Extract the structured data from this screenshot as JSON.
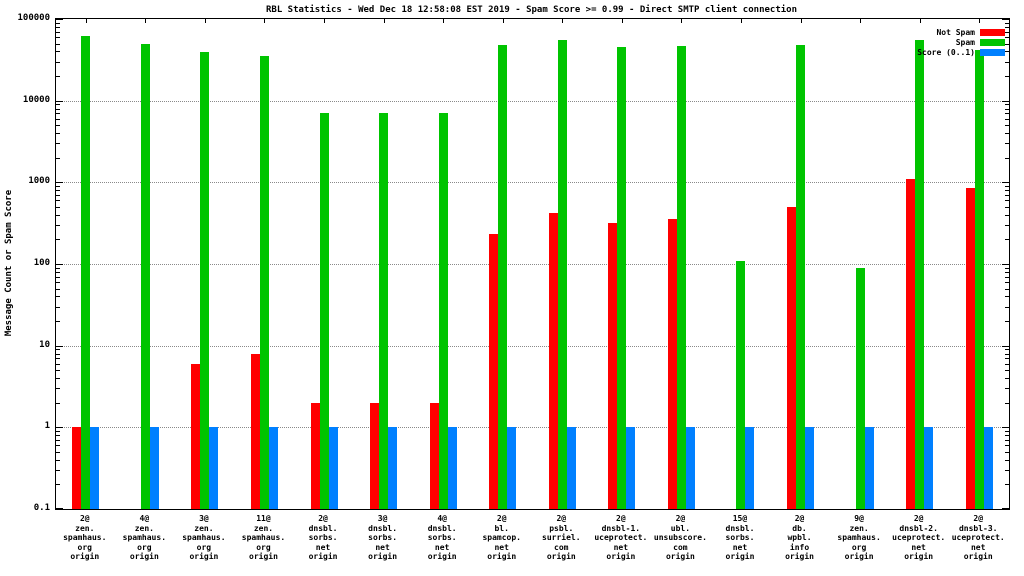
{
  "chart_data": {
    "type": "bar",
    "title": "RBL Statistics - Wed Dec 18 12:58:08 EST 2019 - Spam Score >= 0.99 - Direct SMTP client connection",
    "ylabel": "Message Count or Spam Score",
    "xlabel": "",
    "yscale": "log",
    "ylim": [
      0.1,
      100000
    ],
    "yticks": [
      0.1,
      1,
      10,
      100,
      1000,
      10000,
      100000
    ],
    "grid": "horizontal-dotted",
    "legend_position": "top-right",
    "background": "#ffffff",
    "categories": [
      [
        "2@",
        "zen.",
        "spamhaus.",
        "org",
        "origin"
      ],
      [
        "4@",
        "zen.",
        "spamhaus.",
        "org",
        "origin"
      ],
      [
        "3@",
        "zen.",
        "spamhaus.",
        "org",
        "origin"
      ],
      [
        "11@",
        "zen.",
        "spamhaus.",
        "org",
        "origin"
      ],
      [
        "2@",
        "dnsbl.",
        "sorbs.",
        "net",
        "origin"
      ],
      [
        "3@",
        "dnsbl.",
        "sorbs.",
        "net",
        "origin"
      ],
      [
        "4@",
        "dnsbl.",
        "sorbs.",
        "net",
        "origin"
      ],
      [
        "2@",
        "bl.",
        "spamcop.",
        "net",
        "origin"
      ],
      [
        "2@",
        "psbl.",
        "surriel.",
        "com",
        "origin"
      ],
      [
        "2@",
        "dnsbl-1.",
        "uceprotect.",
        "net",
        "origin"
      ],
      [
        "2@",
        "ubl.",
        "unsubscore.",
        "com",
        "origin"
      ],
      [
        "15@",
        "dnsbl.",
        "sorbs.",
        "net",
        "origin"
      ],
      [
        "2@",
        "db.",
        "wpbl.",
        "info",
        "origin"
      ],
      [
        "9@",
        "zen.",
        "spamhaus.",
        "org",
        "origin"
      ],
      [
        "2@",
        "dnsbl-2.",
        "uceprotect.",
        "net",
        "origin"
      ],
      [
        "2@",
        "dnsbl-3.",
        "uceprotect.",
        "net",
        "origin"
      ]
    ],
    "series": [
      {
        "name": "Not Spam",
        "color": "#ff0000",
        "values": [
          1,
          null,
          6,
          8,
          2,
          2,
          2,
          230,
          420,
          320,
          360,
          null,
          500,
          null,
          1100,
          850
        ]
      },
      {
        "name": "Spam",
        "color": "#00c400",
        "values": [
          62000,
          50000,
          40000,
          35000,
          7000,
          7000,
          7000,
          48000,
          55000,
          45000,
          47000,
          110,
          48000,
          90,
          55000,
          42000
        ]
      },
      {
        "name": "Score (0..1)",
        "color": "#0080ff",
        "values": [
          1,
          1,
          1,
          1,
          1,
          1,
          1,
          1,
          1,
          1,
          1,
          1,
          1,
          1,
          1,
          1
        ]
      }
    ]
  }
}
